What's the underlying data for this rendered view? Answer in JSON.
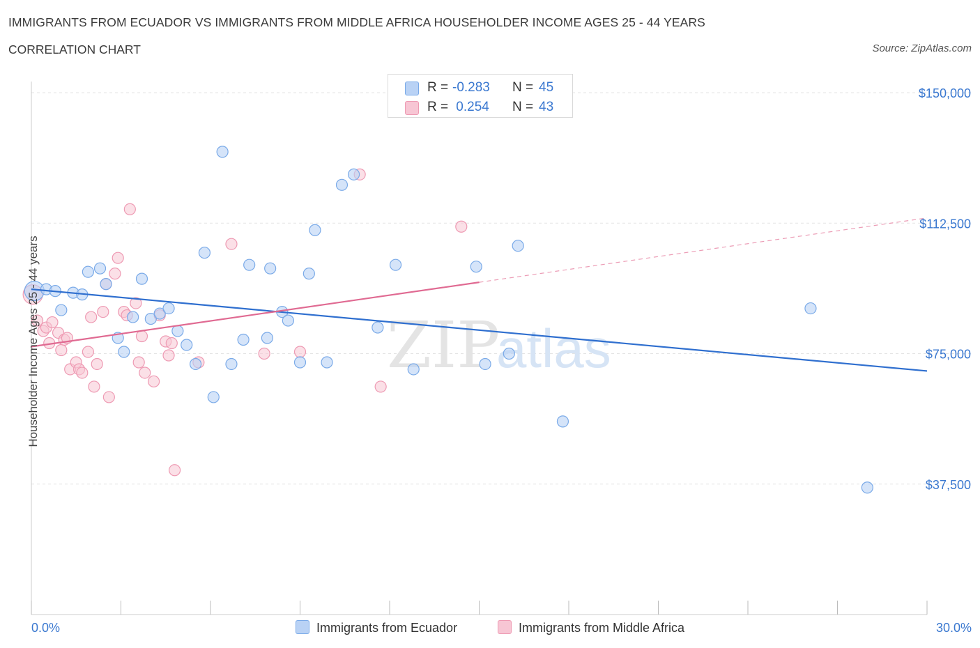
{
  "header": {
    "title": "IMMIGRANTS FROM ECUADOR VS IMMIGRANTS FROM MIDDLE AFRICA HOUSEHOLDER INCOME AGES 25 - 44 YEARS",
    "subtitle": "CORRELATION CHART",
    "source": "Source: ZipAtlas.com"
  },
  "watermark": "ZIPatlas",
  "legend": {
    "rows": [
      {
        "r_label": "R =",
        "r_value": "-0.283",
        "n_label": "N =",
        "n_value": "45"
      },
      {
        "r_label": "R =",
        "r_value": " 0.254",
        "n_label": "N =",
        "n_value": "43"
      }
    ]
  },
  "chart_data": {
    "type": "scatter",
    "title": "IMMIGRANTS FROM ECUADOR VS IMMIGRANTS FROM MIDDLE AFRICA HOUSEHOLDER INCOME AGES 25 - 44 YEARS",
    "xlabel": "",
    "ylabel": "Householder Income Ages 25 - 44 years",
    "xlim": [
      0,
      30
    ],
    "ylim": [
      0,
      150000
    ],
    "x_tick_labels": [
      "0.0%",
      "30.0%"
    ],
    "y_ticks": [
      37500,
      75000,
      112500,
      150000
    ],
    "y_tick_labels": [
      "$37,500",
      "$75,000",
      "$112,500",
      "$150,000"
    ],
    "grid": true,
    "series": [
      {
        "name": "Immigrants from Ecuador",
        "color": "#7aaae8",
        "fill": "#b9d2f5",
        "R": -0.283,
        "N": 45,
        "trend": {
          "x0": 0,
          "y0": 93500,
          "x1": 30,
          "y1": 70000
        },
        "points": [
          [
            0.1,
            93000
          ],
          [
            0.5,
            93500
          ],
          [
            0.8,
            93000
          ],
          [
            1.0,
            87500
          ],
          [
            1.4,
            92500
          ],
          [
            1.7,
            92000
          ],
          [
            1.9,
            98500
          ],
          [
            2.3,
            99500
          ],
          [
            2.5,
            95000
          ],
          [
            2.9,
            79500
          ],
          [
            3.1,
            75500
          ],
          [
            3.4,
            85500
          ],
          [
            3.7,
            96500
          ],
          [
            4.0,
            85000
          ],
          [
            4.3,
            86500
          ],
          [
            4.6,
            88000
          ],
          [
            4.9,
            81500
          ],
          [
            5.2,
            77500
          ],
          [
            5.5,
            72000
          ],
          [
            5.8,
            104000
          ],
          [
            6.1,
            62500
          ],
          [
            6.4,
            133000
          ],
          [
            6.7,
            72000
          ],
          [
            7.1,
            79000
          ],
          [
            7.3,
            100500
          ],
          [
            7.9,
            79500
          ],
          [
            8.0,
            99500
          ],
          [
            8.4,
            87000
          ],
          [
            8.6,
            84500
          ],
          [
            9.0,
            72500
          ],
          [
            9.3,
            98000
          ],
          [
            9.5,
            110500
          ],
          [
            9.9,
            72500
          ],
          [
            10.4,
            123500
          ],
          [
            10.8,
            126500
          ],
          [
            11.6,
            82500
          ],
          [
            12.2,
            100500
          ],
          [
            12.8,
            70500
          ],
          [
            14.9,
            100000
          ],
          [
            15.2,
            72000
          ],
          [
            16.0,
            75000
          ],
          [
            16.3,
            106000
          ],
          [
            17.8,
            55500
          ],
          [
            26.1,
            88000
          ],
          [
            28.0,
            36500
          ]
        ]
      },
      {
        "name": "Immigrants from Middle Africa",
        "color": "#ee9ab3",
        "fill": "#f7c6d4",
        "R": 0.254,
        "N": 43,
        "trend_solid": {
          "x0": 0,
          "y0": 77000,
          "x1": 15,
          "y1": 95500
        },
        "trend_dashed": {
          "x0": 15,
          "y0": 95500,
          "x1": 30,
          "y1": 114000
        },
        "points": [
          [
            0.2,
            84500
          ],
          [
            0.4,
            81500
          ],
          [
            0.5,
            82500
          ],
          [
            0.6,
            78000
          ],
          [
            0.7,
            84000
          ],
          [
            0.9,
            81000
          ],
          [
            1.0,
            76000
          ],
          [
            1.1,
            79000
          ],
          [
            1.2,
            79500
          ],
          [
            1.3,
            70500
          ],
          [
            1.5,
            72500
          ],
          [
            1.6,
            70500
          ],
          [
            1.7,
            69500
          ],
          [
            1.9,
            75500
          ],
          [
            2.0,
            85500
          ],
          [
            2.1,
            65500
          ],
          [
            2.2,
            72000
          ],
          [
            2.4,
            87000
          ],
          [
            2.5,
            95000
          ],
          [
            2.6,
            62500
          ],
          [
            2.8,
            98000
          ],
          [
            2.9,
            102500
          ],
          [
            3.1,
            87000
          ],
          [
            3.2,
            86000
          ],
          [
            3.3,
            116500
          ],
          [
            3.5,
            89500
          ],
          [
            3.6,
            72500
          ],
          [
            3.7,
            80000
          ],
          [
            3.8,
            69500
          ],
          [
            4.1,
            67000
          ],
          [
            4.3,
            86000
          ],
          [
            4.5,
            78500
          ],
          [
            4.6,
            74500
          ],
          [
            4.7,
            78000
          ],
          [
            4.8,
            41500
          ],
          [
            5.6,
            72500
          ],
          [
            6.7,
            106500
          ],
          [
            7.8,
            75000
          ],
          [
            9.0,
            75500
          ],
          [
            11.0,
            126500
          ],
          [
            11.7,
            65500
          ],
          [
            14.4,
            111500
          ],
          [
            0.05,
            92000
          ]
        ]
      }
    ]
  }
}
